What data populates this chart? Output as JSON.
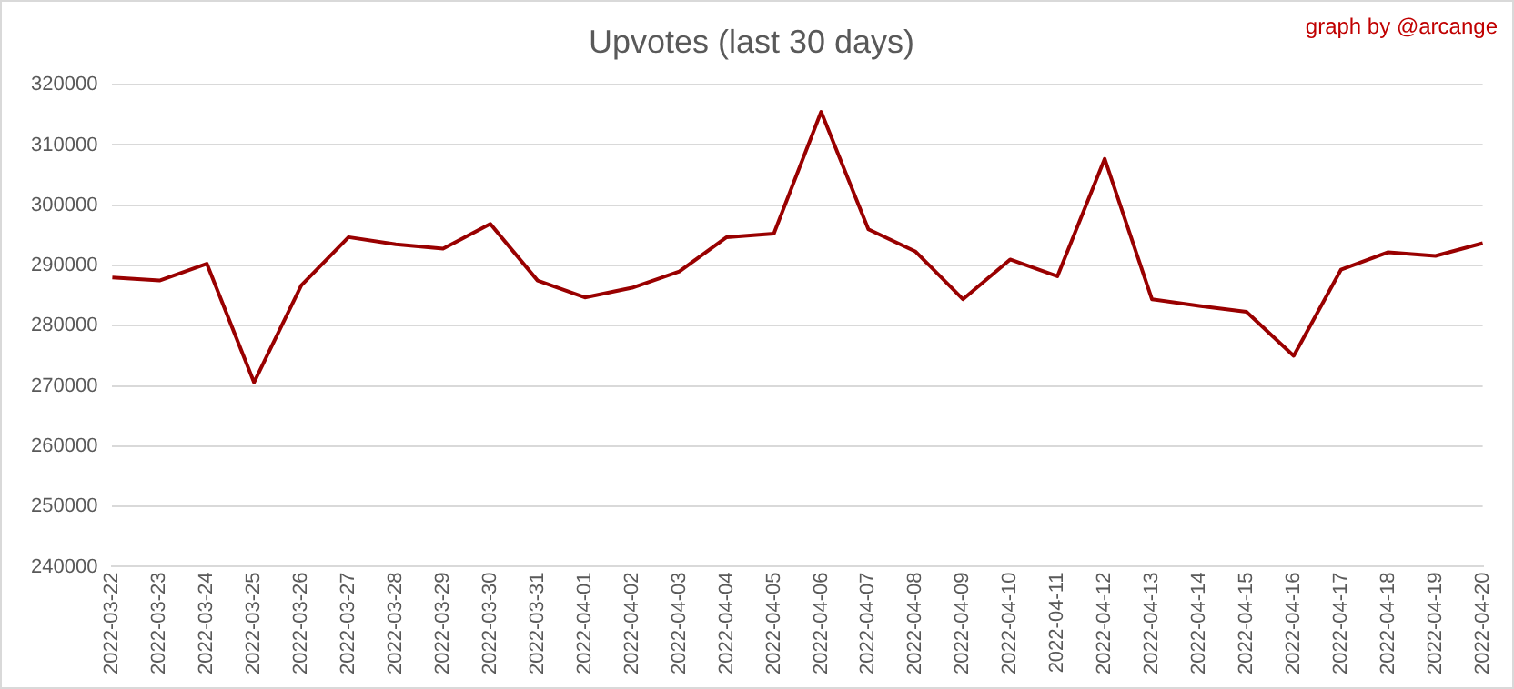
{
  "chart_data": {
    "type": "line",
    "title": "Upvotes (last 30 days)",
    "annotations": [
      "graph by @arcange"
    ],
    "categories": [
      "2022-03-22",
      "2022-03-23",
      "2022-03-24",
      "2022-03-25",
      "2022-03-26",
      "2022-03-27",
      "2022-03-28",
      "2022-03-29",
      "2022-03-30",
      "2022-03-31",
      "2022-04-01",
      "2022-04-02",
      "2022-04-03",
      "2022-04-04",
      "2022-04-05",
      "2022-04-06",
      "2022-04-07",
      "2022-04-08",
      "2022-04-09",
      "2022-04-10",
      "2022-04-11",
      "2022-04-12",
      "2022-04-13",
      "2022-04-14",
      "2022-04-15",
      "2022-04-16",
      "2022-04-17",
      "2022-04-18",
      "2022-04-19",
      "2022-04-20"
    ],
    "series": [
      {
        "color": "#990000",
        "values": [
          288000,
          287500,
          290300,
          270600,
          286700,
          294700,
          293500,
          292800,
          296900,
          287500,
          284700,
          286300,
          289000,
          294700,
          295300,
          315500,
          296000,
          292300,
          284400,
          291000,
          288200,
          307700,
          284400,
          283300,
          282300,
          275000,
          289300,
          292200,
          291600,
          293700
        ]
      }
    ],
    "ylim": [
      240000,
      320000
    ],
    "yticks": [
      240000,
      250000,
      260000,
      270000,
      280000,
      290000,
      300000,
      310000,
      320000
    ],
    "grid": "y",
    "legend": false,
    "marker": "none",
    "line_style": "solid"
  }
}
